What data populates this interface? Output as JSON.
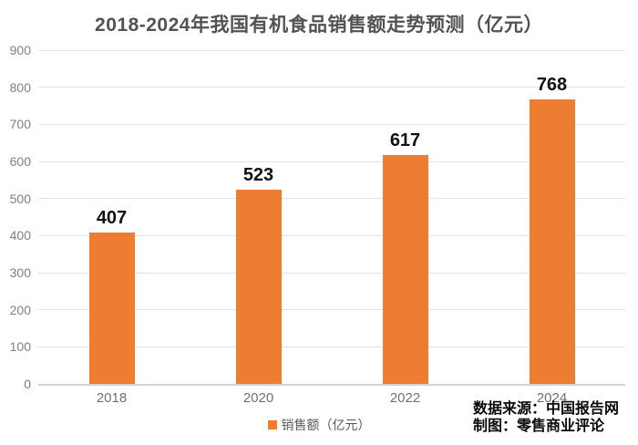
{
  "title": "2018-2024年我国有机食品销售额走势预测（亿元）",
  "chart_data": {
    "type": "bar",
    "title": "2018-2024年我国有机食品销售额走势预测（亿元）",
    "categories": [
      "2018",
      "2020",
      "2022",
      "2024"
    ],
    "values": [
      407,
      523,
      617,
      768
    ],
    "series_name": "销售额（亿元）",
    "xlabel": "",
    "ylabel": "",
    "ylim": [
      0,
      900
    ],
    "ytick_step": 100,
    "yticks": [
      0,
      100,
      200,
      300,
      400,
      500,
      600,
      700,
      800,
      900
    ],
    "grid": true,
    "data_labels": true,
    "legend_position": "bottom",
    "bar_color": "#ED7D31"
  },
  "legend": {
    "label": "销售额（亿元）",
    "swatch_color": "#ED7D31"
  },
  "footer": {
    "source_line": "数据来源：中国报告网",
    "credit_line": "制图：零售商业评论"
  },
  "colors": {
    "background": "#ffffff",
    "bar": "#ED7D31",
    "title_text": "#525252",
    "ytick_text": "#7f7f7f",
    "xtick_text": "#707070",
    "data_label_text": "#111111",
    "gridline": "#e4e4e4",
    "axis_line": "#d2d2d2",
    "footer_text": "#0a0a0a"
  }
}
